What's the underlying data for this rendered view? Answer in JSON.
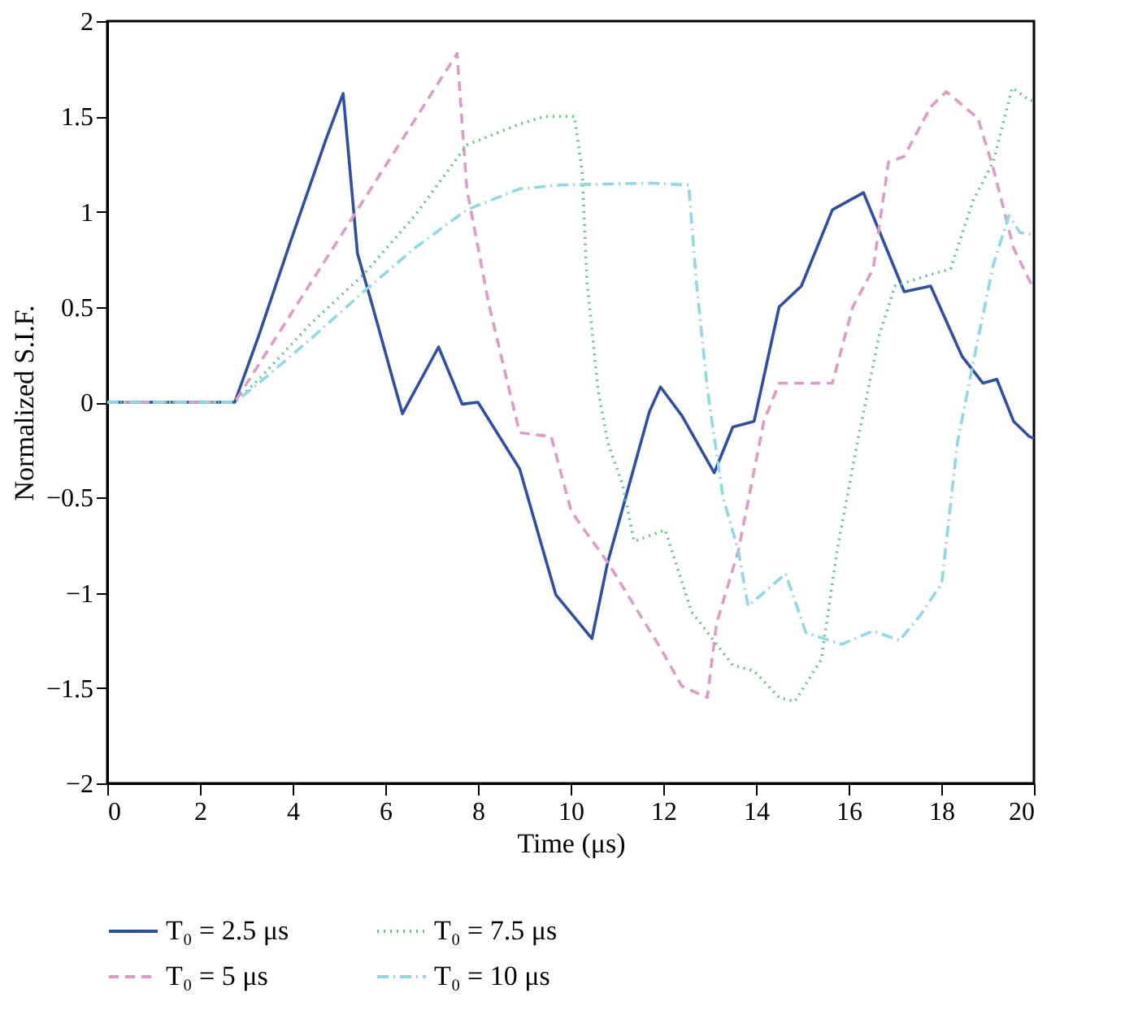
{
  "chart_data": {
    "type": "line",
    "xlabel": "Time (μs)",
    "ylabel": "Normalized S.I.F.",
    "xlim": [
      0,
      20
    ],
    "xticks": [
      0,
      2,
      4,
      6,
      8,
      10,
      12,
      14,
      16,
      18,
      20
    ],
    "ylim": [
      -2,
      2
    ],
    "yticks": [
      {
        "value": -2,
        "label": "−2"
      },
      {
        "value": -1.5,
        "label": "−1.5"
      },
      {
        "value": -1,
        "label": "−1"
      },
      {
        "value": -0.5,
        "label": "−0.5"
      },
      0,
      0.5,
      1,
      1.5,
      2
    ],
    "grid": false,
    "legend": "bottom",
    "series": [
      {
        "name": "T₀ = 2.5 μs",
        "color": "#2e4fa8",
        "line_style": "solid",
        "x": [
          0,
          2.75,
          3.27,
          3.95,
          4.72,
          5.09,
          5.4,
          5.73,
          6.14,
          6.37,
          7.15,
          7.66,
          8.0,
          8.9,
          9.68,
          10.46,
          10.8,
          11.7,
          11.94,
          12.4,
          13.1,
          13.5,
          13.96,
          14.5,
          14.98,
          15.65,
          16.32,
          16.76,
          17.2,
          17.77,
          18.45,
          18.9,
          19.2,
          19.56,
          19.9,
          20
        ],
        "values": [
          0,
          0,
          0.35,
          0.84,
          1.38,
          1.62,
          0.78,
          0.5,
          0.14,
          -0.06,
          0.29,
          -0.01,
          0,
          -0.35,
          -1.01,
          -1.24,
          -0.84,
          -0.05,
          0.08,
          -0.07,
          -0.37,
          -0.13,
          -0.1,
          0.5,
          0.61,
          1.01,
          1.1,
          0.84,
          0.58,
          0.61,
          0.24,
          0.1,
          0.12,
          -0.1,
          -0.18,
          -0.19
        ]
      },
      {
        "name": "T₀ = 5 μs",
        "color": "#e09ac8",
        "line_style": "dashed",
        "x": [
          0,
          2.75,
          7.55,
          7.76,
          8.23,
          8.67,
          8.9,
          9.58,
          10.0,
          10.12,
          10.8,
          11.94,
          12.4,
          12.95,
          13.15,
          13.62,
          14.17,
          14.5,
          15.65,
          16.09,
          16.53,
          16.86,
          17.2,
          17.77,
          18.11,
          18.79,
          19.12,
          19.56,
          19.9,
          20
        ],
        "values": [
          0,
          0,
          1.83,
          1.12,
          0.52,
          0.07,
          -0.16,
          -0.18,
          -0.56,
          -0.61,
          -0.84,
          -1.29,
          -1.49,
          -1.55,
          -1.16,
          -0.78,
          -0.1,
          0.1,
          0.1,
          0.5,
          0.7,
          1.26,
          1.29,
          1.55,
          1.63,
          1.49,
          1.23,
          0.81,
          0.64,
          0.6
        ]
      },
      {
        "name": "T₀ = 7.5 μs",
        "color": "#5ec77a",
        "line_style": "dotted",
        "x": [
          0,
          2.75,
          3.27,
          4.38,
          5.53,
          6.64,
          7.76,
          8.9,
          9.44,
          10.08,
          10.25,
          10.35,
          10.59,
          10.8,
          11.13,
          11.37,
          12.04,
          12.61,
          13.5,
          13.96,
          14.5,
          14.84,
          15.41,
          15.75,
          16.19,
          16.66,
          17.0,
          17.77,
          18.2,
          18.69,
          19.12,
          19.53,
          19.87,
          20
        ],
        "values": [
          0,
          0,
          0.12,
          0.41,
          0.67,
          0.98,
          1.35,
          1.46,
          1.5,
          1.5,
          1.21,
          0.64,
          0.07,
          -0.21,
          -0.44,
          -0.73,
          -0.67,
          -1.1,
          -1.38,
          -1.41,
          -1.55,
          -1.57,
          -1.35,
          -0.78,
          -0.21,
          0.35,
          0.61,
          0.67,
          0.7,
          1.06,
          1.26,
          1.65,
          1.59,
          1.58
        ]
      },
      {
        "name": "T₀ = 10 μs",
        "color": "#8fd8e8",
        "line_style": "dashdot",
        "x": [
          0,
          2.75,
          3.27,
          4.38,
          5.53,
          6.64,
          7.76,
          8.9,
          9.78,
          11.7,
          12.55,
          12.71,
          12.95,
          13.29,
          13.62,
          13.83,
          14.64,
          15.08,
          15.85,
          16.53,
          17.1,
          17.54,
          18.01,
          18.35,
          18.69,
          19.12,
          19.46,
          19.7,
          20
        ],
        "values": [
          0,
          0,
          0.1,
          0.33,
          0.58,
          0.81,
          1.01,
          1.12,
          1.14,
          1.15,
          1.14,
          0.64,
          0.07,
          -0.5,
          -0.78,
          -1.07,
          -0.9,
          -1.21,
          -1.27,
          -1.2,
          -1.25,
          -1.12,
          -0.95,
          -0.21,
          0.21,
          0.72,
          0.98,
          0.89,
          0.88
        ]
      }
    ]
  }
}
